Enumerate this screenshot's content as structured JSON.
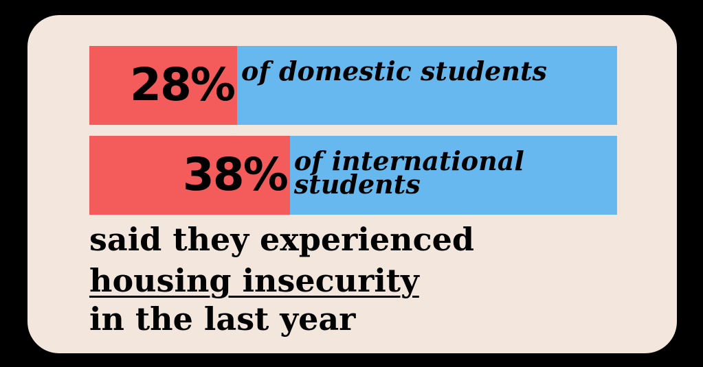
{
  "chart_data": {
    "type": "bar",
    "orientation": "horizontal",
    "categories": [
      "of domestic students",
      "of international students"
    ],
    "values": [
      28,
      38
    ],
    "value_labels": [
      "28%",
      "38%"
    ],
    "color": "#f45b5b",
    "track_color": "#66b8ee",
    "xlim": [
      0,
      100
    ],
    "caption": [
      "said they experienced",
      "housing insecurity",
      "in the last year"
    ]
  }
}
